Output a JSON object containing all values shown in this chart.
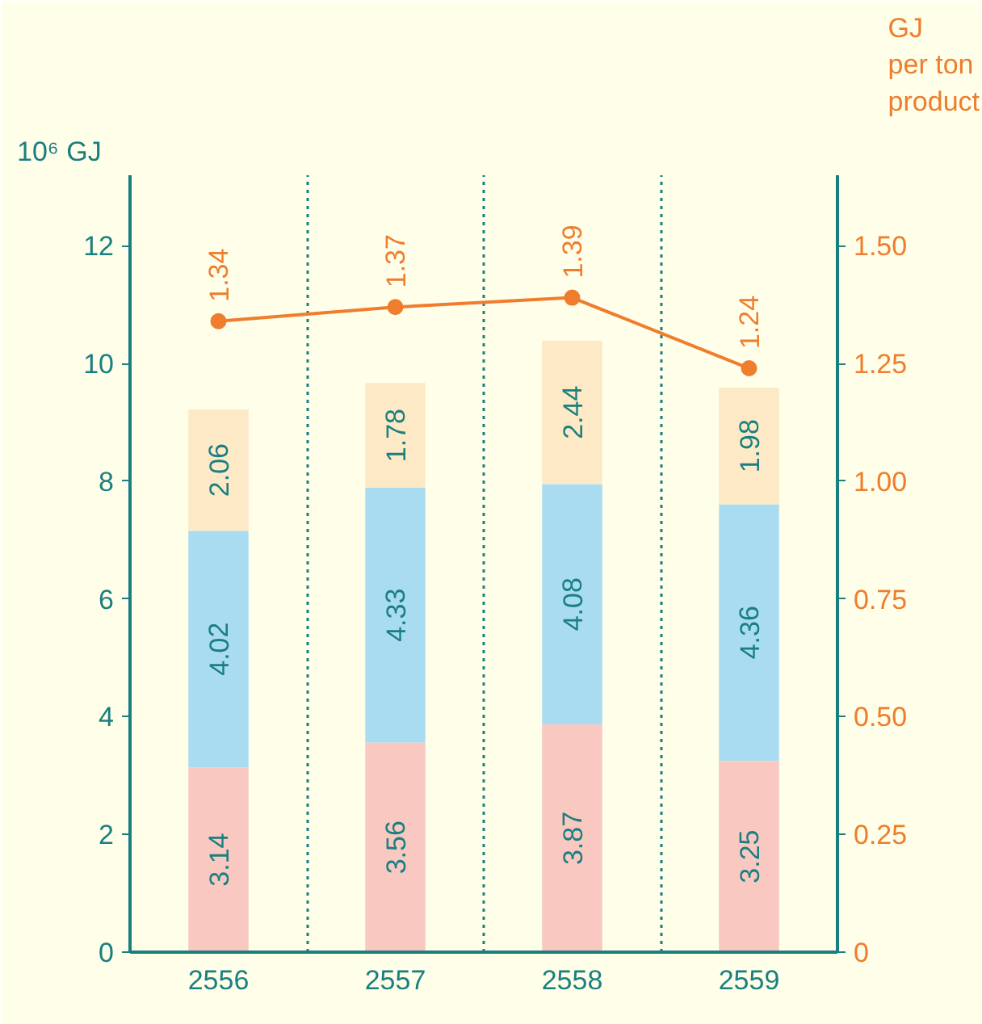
{
  "chart_data": {
    "type": "bar",
    "stacked": true,
    "data_labels": true,
    "grid": "x",
    "ylabel": "10⁶ GJ",
    "y2label": "GJ per ton product",
    "categories": [
      "2556",
      "2557",
      "2558",
      "2559"
    ],
    "ylim": [
      0,
      13.2
    ],
    "yticks": [
      0,
      2,
      4,
      6,
      8,
      10,
      12
    ],
    "y2lim": [
      0,
      1.65
    ],
    "y2ticks": [
      0,
      0.25,
      {
        "value": 0.5,
        "label": "0.50"
      },
      0.75,
      {
        "value": 1,
        "label": "1.00"
      },
      1.25,
      {
        "value": 1.5,
        "label": "1.50"
      }
    ],
    "series": [
      {
        "color": "#f9c8c0",
        "values": [
          3.14,
          3.56,
          3.87,
          3.25
        ]
      },
      {
        "color": "#a9dcf1",
        "values": [
          4.02,
          4.33,
          4.08,
          4.36
        ]
      },
      {
        "color": "#fde9c5",
        "values": [
          2.06,
          1.78,
          2.44,
          1.98
        ]
      },
      {
        "type": "line",
        "axis": "y2",
        "color": "#ef7d2d",
        "marker": "circle",
        "values": [
          1.34,
          1.37,
          1.39,
          1.24
        ]
      }
    ]
  }
}
